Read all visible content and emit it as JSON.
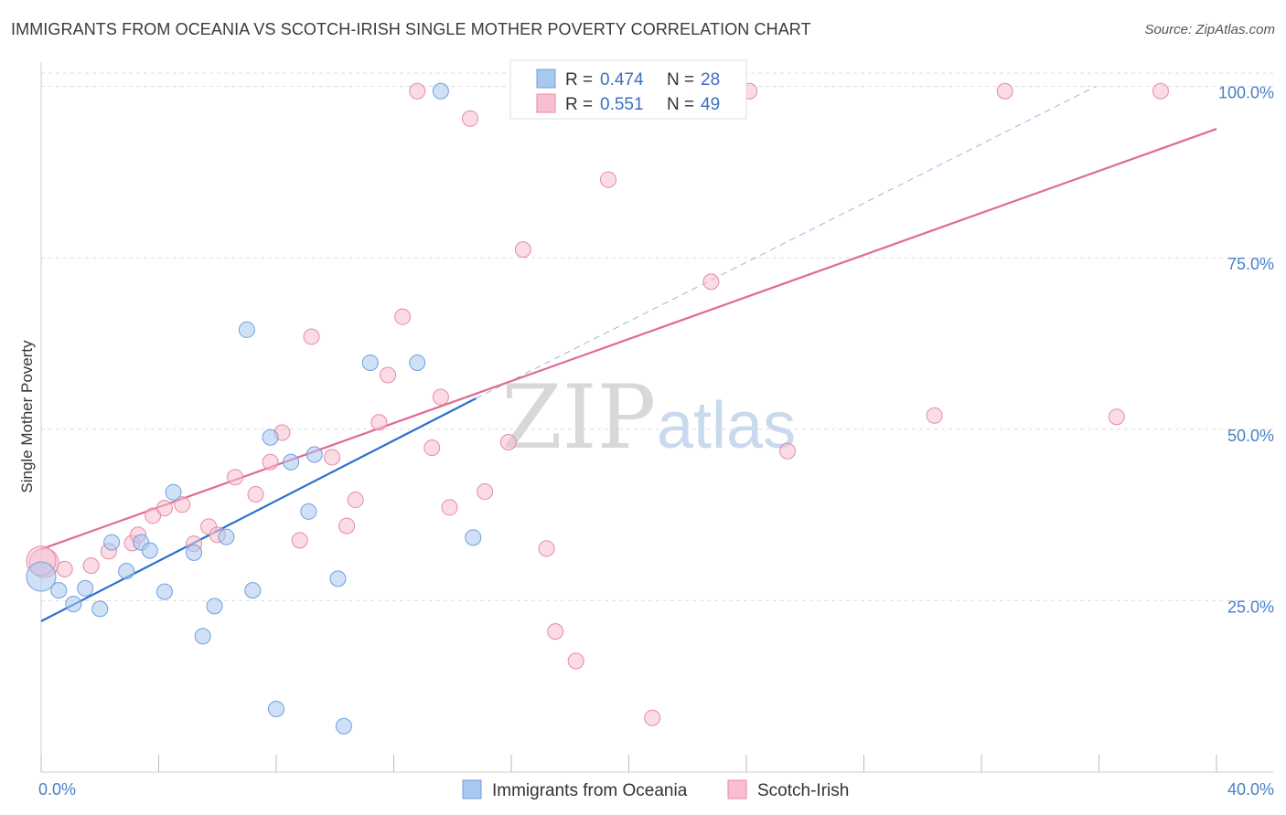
{
  "title": "IMMIGRANTS FROM OCEANIA VS SCOTCH-IRISH SINGLE MOTHER POVERTY CORRELATION CHART",
  "source": "Source: ZipAtlas.com",
  "watermark": {
    "zip": "ZIP",
    "atlas": "atlas"
  },
  "colors": {
    "blue_fill": "#a9c8f0",
    "blue_stroke": "#6f9fdc",
    "blue_line": "#2b6fd0",
    "pink_fill": "#f7bfd0",
    "pink_stroke": "#e58aa8",
    "pink_line": "#e06a93",
    "grid": "#dddddd",
    "tick_text": "#4a7fc8"
  },
  "legend": {
    "rows": [
      {
        "r_label": "R =",
        "r_value": "0.474",
        "n_label": "N =",
        "n_value": "28"
      },
      {
        "r_label": "R =",
        "r_value": "0.551",
        "n_label": "N =",
        "n_value": "49"
      }
    ]
  },
  "bottom_legend": [
    "Immigrants from Oceania",
    "Scotch-Irish"
  ],
  "chart_data": {
    "type": "scatter",
    "title": "IMMIGRANTS FROM OCEANIA VS SCOTCH-IRISH SINGLE MOTHER POVERTY CORRELATION CHART",
    "xlabel": "",
    "ylabel": "Single Mother Poverty",
    "xlim": [
      0,
      40
    ],
    "ylim": [
      0,
      103
    ],
    "x_tick_labels": [
      "0.0%",
      "40.0%"
    ],
    "y_ticks": [
      25,
      50,
      75,
      100
    ],
    "y_tick_labels": [
      "25.0%",
      "50.0%",
      "75.0%",
      "100.0%"
    ],
    "grid": true,
    "legend_position": "top-center",
    "series": [
      {
        "name": "Immigrants from Oceania",
        "r": 0.474,
        "n": 28,
        "points": [
          [
            0.0,
            28.5
          ],
          [
            0.6,
            26.5
          ],
          [
            1.1,
            24.5
          ],
          [
            1.5,
            26.8
          ],
          [
            2.0,
            23.8
          ],
          [
            2.4,
            33.5
          ],
          [
            2.9,
            29.3
          ],
          [
            3.4,
            33.5
          ],
          [
            3.7,
            32.3
          ],
          [
            4.2,
            26.3
          ],
          [
            4.5,
            40.8
          ],
          [
            5.2,
            32.0
          ],
          [
            5.5,
            19.8
          ],
          [
            5.9,
            24.2
          ],
          [
            6.3,
            34.3
          ],
          [
            7.0,
            64.5
          ],
          [
            7.2,
            26.5
          ],
          [
            7.8,
            48.8
          ],
          [
            8.0,
            9.2
          ],
          [
            8.5,
            45.2
          ],
          [
            9.1,
            38.0
          ],
          [
            9.3,
            46.3
          ],
          [
            10.1,
            28.2
          ],
          [
            10.3,
            6.7
          ],
          [
            11.2,
            59.7
          ],
          [
            12.8,
            59.7
          ],
          [
            13.6,
            99.3
          ],
          [
            14.7,
            34.2
          ]
        ],
        "trend": {
          "x0": 0,
          "y0": 22,
          "x1": 14.8,
          "y1": 54.5,
          "dash_x1": 35.9,
          "dash_y1": 100
        }
      },
      {
        "name": "Scotch-Irish",
        "r": 0.551,
        "n": 49,
        "points": [
          [
            0.1,
            30.5
          ],
          [
            0.8,
            29.6
          ],
          [
            1.7,
            30.1
          ],
          [
            2.3,
            32.2
          ],
          [
            3.1,
            33.4
          ],
          [
            3.3,
            34.6
          ],
          [
            3.8,
            37.4
          ],
          [
            4.2,
            38.5
          ],
          [
            4.8,
            39.0
          ],
          [
            5.2,
            33.3
          ],
          [
            5.7,
            35.8
          ],
          [
            6.0,
            34.6
          ],
          [
            6.6,
            43.0
          ],
          [
            7.3,
            40.5
          ],
          [
            7.8,
            45.2
          ],
          [
            8.2,
            49.5
          ],
          [
            8.8,
            33.8
          ],
          [
            9.2,
            63.5
          ],
          [
            9.9,
            45.9
          ],
          [
            10.4,
            35.9
          ],
          [
            10.7,
            39.7
          ],
          [
            11.5,
            51.0
          ],
          [
            11.8,
            57.9
          ],
          [
            12.3,
            66.4
          ],
          [
            12.8,
            99.3
          ],
          [
            13.3,
            47.3
          ],
          [
            13.6,
            54.7
          ],
          [
            13.9,
            38.6
          ],
          [
            14.6,
            95.3
          ],
          [
            15.1,
            40.9
          ],
          [
            15.9,
            48.1
          ],
          [
            16.4,
            76.2
          ],
          [
            17.2,
            32.6
          ],
          [
            17.5,
            20.5
          ],
          [
            18.0,
            99.3
          ],
          [
            18.2,
            16.2
          ],
          [
            19.3,
            86.4
          ],
          [
            20.8,
            7.9
          ],
          [
            21.5,
            99.3
          ],
          [
            22.2,
            99.3
          ],
          [
            22.8,
            71.5
          ],
          [
            23.4,
            99.3
          ],
          [
            24.1,
            99.3
          ],
          [
            25.4,
            46.8
          ],
          [
            30.4,
            52.0
          ],
          [
            32.8,
            99.3
          ],
          [
            36.6,
            51.8
          ],
          [
            38.1,
            99.3
          ],
          [
            0.0,
            30.8
          ]
        ],
        "trend": {
          "x0": 0,
          "y0": 32.5,
          "x1": 40,
          "y1": 93.8
        }
      }
    ]
  }
}
